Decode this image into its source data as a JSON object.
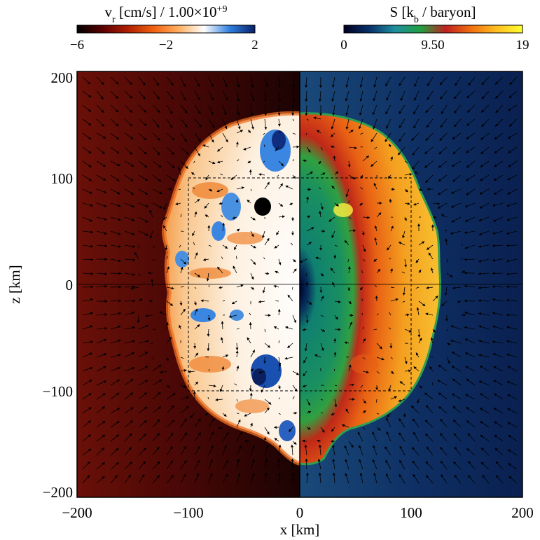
{
  "chart_data": {
    "type": "heatmap",
    "title": "",
    "xlabel": "x [km]",
    "ylabel": "z [km]",
    "xlim": [
      -200,
      200
    ],
    "ylim": [
      -200,
      200
    ],
    "xticks": [
      "-200",
      "-100",
      "0",
      "100",
      "200"
    ],
    "yticks": [
      "200",
      "100",
      "0",
      "-100",
      "-200"
    ],
    "grid": false,
    "colorbars": [
      {
        "name": "radial-velocity",
        "label_main": "v",
        "label_sub": "r",
        "label_rest": " [cm/s] / 1.00×10",
        "label_sup": "+9",
        "range": [
          -6,
          2
        ],
        "ticks": [
          "-6",
          "-2",
          "2"
        ],
        "colormap": [
          "#000000",
          "#5a0000",
          "#b01e00",
          "#f06010",
          "#ffb060",
          "#ffffff",
          "#3080e0",
          "#08206a"
        ],
        "panel": "left half (x < 0)"
      },
      {
        "name": "entropy",
        "label_main": "S [k",
        "label_sub": "b",
        "label_rest": " / baryon]",
        "range": [
          0,
          19
        ],
        "ticks": [
          "0",
          "9.50",
          "19"
        ],
        "colormap": [
          "#000020",
          "#08306b",
          "#1f8fa0",
          "#20a040",
          "#c02020",
          "#f07010",
          "#ffc020",
          "#ffff30"
        ],
        "panel": "right half (x > 0)"
      }
    ],
    "regions": {
      "shock_radius_km_approx": 150,
      "inner_core_radius_km_approx": 10,
      "low_entropy_region_radius_km_approx": 60,
      "dashed_box_km": [
        -100,
        100
      ]
    }
  },
  "colors": {
    "outer_left": "#6a1008",
    "outer_right": "#0e2a60",
    "shocked_right": "#f08a20",
    "shocked_left": "#fbe6cc"
  }
}
